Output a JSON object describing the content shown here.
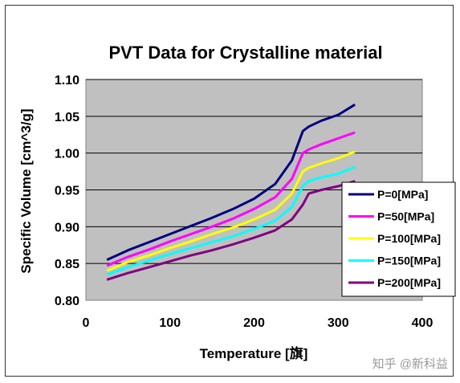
{
  "chart_data": {
    "type": "line",
    "title": "PVT Data for Crystalline material",
    "xlabel": "Temperature [旗]",
    "ylabel": "Specific Volume [cm^3/g]",
    "xlim": [
      0,
      400
    ],
    "ylim": [
      0.8,
      1.1
    ],
    "xticks": [
      "0",
      "100",
      "200",
      "300",
      "400"
    ],
    "yticks": [
      "0.80",
      "0.85",
      "0.90",
      "0.95",
      "1.00",
      "1.05",
      "1.10"
    ],
    "grid": "horizontal",
    "legend_position": "right",
    "plot_background": "#c0c0c0",
    "series": [
      {
        "name": "P=0[MPa]",
        "color": "#000080",
        "x": [
          25,
          50,
          75,
          100,
          125,
          150,
          175,
          200,
          225,
          245,
          258,
          265,
          280,
          300,
          320
        ],
        "y": [
          0.855,
          0.868,
          0.879,
          0.89,
          0.901,
          0.912,
          0.924,
          0.938,
          0.958,
          0.99,
          1.03,
          1.036,
          1.044,
          1.052,
          1.066
        ]
      },
      {
        "name": "P=50[MPa]",
        "color": "#ff00ff",
        "x": [
          25,
          50,
          75,
          100,
          125,
          150,
          175,
          200,
          225,
          245,
          258,
          265,
          280,
          300,
          320
        ],
        "y": [
          0.847,
          0.859,
          0.869,
          0.88,
          0.89,
          0.9,
          0.911,
          0.924,
          0.94,
          0.965,
          1.0,
          1.005,
          1.012,
          1.02,
          1.028
        ]
      },
      {
        "name": "P=100[MPa]",
        "color": "#ffff00",
        "x": [
          25,
          50,
          75,
          100,
          125,
          150,
          175,
          200,
          225,
          245,
          258,
          265,
          280,
          300,
          320
        ],
        "y": [
          0.84,
          0.852,
          0.861,
          0.871,
          0.88,
          0.89,
          0.899,
          0.91,
          0.923,
          0.945,
          0.975,
          0.98,
          0.986,
          0.993,
          1.002
        ]
      },
      {
        "name": "P=150[MPa]",
        "color": "#00ffff",
        "x": [
          25,
          50,
          75,
          100,
          125,
          150,
          175,
          200,
          225,
          245,
          258,
          265,
          280,
          300,
          320
        ],
        "y": [
          0.835,
          0.845,
          0.854,
          0.863,
          0.871,
          0.879,
          0.887,
          0.897,
          0.908,
          0.927,
          0.955,
          0.962,
          0.967,
          0.972,
          0.981
        ]
      },
      {
        "name": "P=200[MPa]",
        "color": "#800080",
        "x": [
          25,
          50,
          75,
          100,
          125,
          150,
          175,
          200,
          225,
          245,
          258,
          265,
          280,
          300,
          320
        ],
        "y": [
          0.828,
          0.837,
          0.845,
          0.853,
          0.861,
          0.868,
          0.876,
          0.885,
          0.895,
          0.91,
          0.93,
          0.945,
          0.95,
          0.955,
          0.962
        ]
      }
    ]
  },
  "watermark": "知乎 @新科益"
}
